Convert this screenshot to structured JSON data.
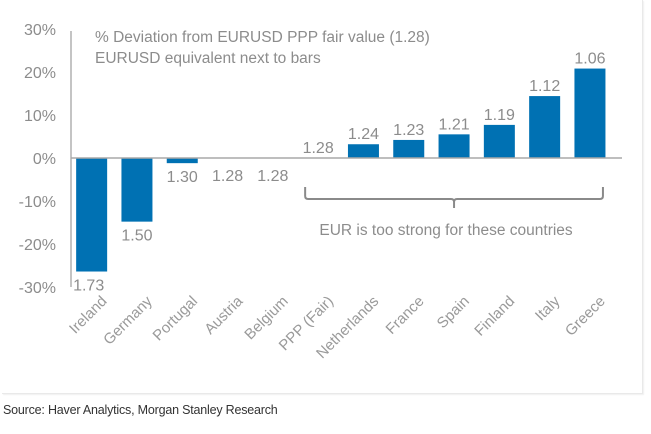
{
  "chart_data": {
    "type": "bar",
    "title_lines": [
      "% Deviation from EURUSD  PPP fair value (1.28)",
      "EURUSD equivalent next to bars"
    ],
    "xlabel": "",
    "ylabel": "",
    "categories": [
      "Ireland",
      "Germany",
      "Portugal",
      "Austria",
      "Belgium",
      "PPP (Fair)",
      "Netherlands",
      "France",
      "Spain",
      "Finland",
      "Italy",
      "Greece"
    ],
    "values": [
      -26.4,
      -14.8,
      -1.2,
      0,
      0,
      0,
      3.2,
      4.2,
      5.5,
      7.7,
      14.4,
      20.8
    ],
    "data_labels": [
      "1.73",
      "1.50",
      "1.30",
      "1.28",
      "1.28",
      "1.28",
      "1.24",
      "1.23",
      "1.21",
      "1.19",
      "1.12",
      "1.06"
    ],
    "ylim": [
      -30,
      30
    ],
    "yticks": [
      30,
      20,
      10,
      0,
      -10,
      -20,
      -30
    ],
    "ytick_labels": [
      "30%",
      "20%",
      "10%",
      "0%",
      "-10%",
      "-20%",
      "-30%"
    ],
    "grid": false,
    "bar_color": "#0071b3",
    "annotation": {
      "text": "EUR is too strong for these countries",
      "bracket_from": "PPP (Fair)",
      "bracket_to": "Greece"
    }
  },
  "source": "Source: Haver Analytics, Morgan Stanley Research"
}
